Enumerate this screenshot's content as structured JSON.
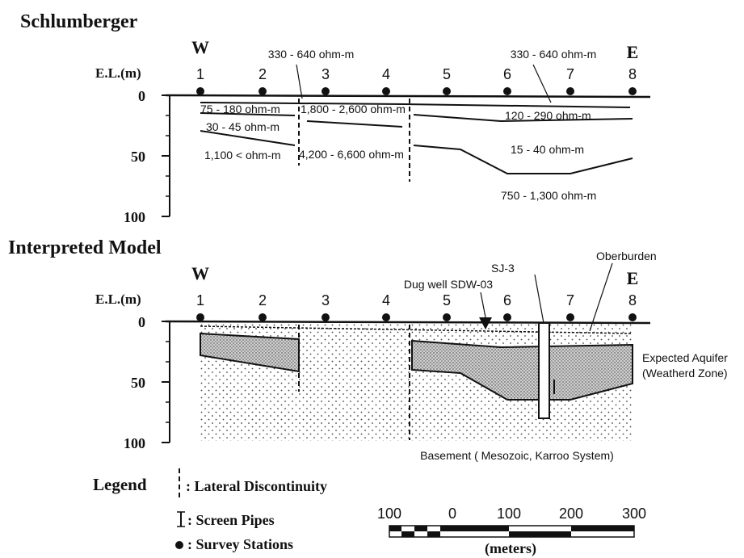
{
  "sections": [
    {
      "title": "Schlumberger",
      "west": "W",
      "east": "E",
      "axis_label": "E.L.(m)",
      "stations": [
        "1",
        "2",
        "3",
        "4",
        "5",
        "6",
        "7",
        "8"
      ],
      "depth_ticks": [
        "0",
        "50",
        "100"
      ],
      "annotations": [
        "330 - 640 ohm-m",
        "330 - 640 ohm-m",
        "75 - 180 ohm-m",
        "1,800 - 2,600 ohm-m",
        "120 - 290 ohm-m",
        "30 - 45 ohm-m",
        "15 - 40 ohm-m",
        "1,100 < ohm-m",
        "4,200 - 6,600 ohm-m",
        "750 - 1,300 ohm-m"
      ]
    },
    {
      "title": "Interpreted Model",
      "west": "W",
      "east": "E",
      "axis_label": "E.L.(m)",
      "stations": [
        "1",
        "2",
        "3",
        "4",
        "5",
        "6",
        "7",
        "8"
      ],
      "depth_ticks": [
        "0",
        "50",
        "100"
      ],
      "annotations": [
        "Dug well SDW-03",
        "SJ-3",
        "Oberburden",
        "Expected Aquifer",
        "(Weatherd Zone)",
        "Basement ( Mesozoic, Karroo System)"
      ]
    }
  ],
  "legend": {
    "title": "Legend",
    "items": [
      ": Lateral Discontinuity",
      ": Screen Pipes",
      ": Survey Stations"
    ]
  },
  "scale": {
    "ticks": [
      "100",
      "0",
      "100",
      "200",
      "300"
    ],
    "unit": "(meters)"
  }
}
